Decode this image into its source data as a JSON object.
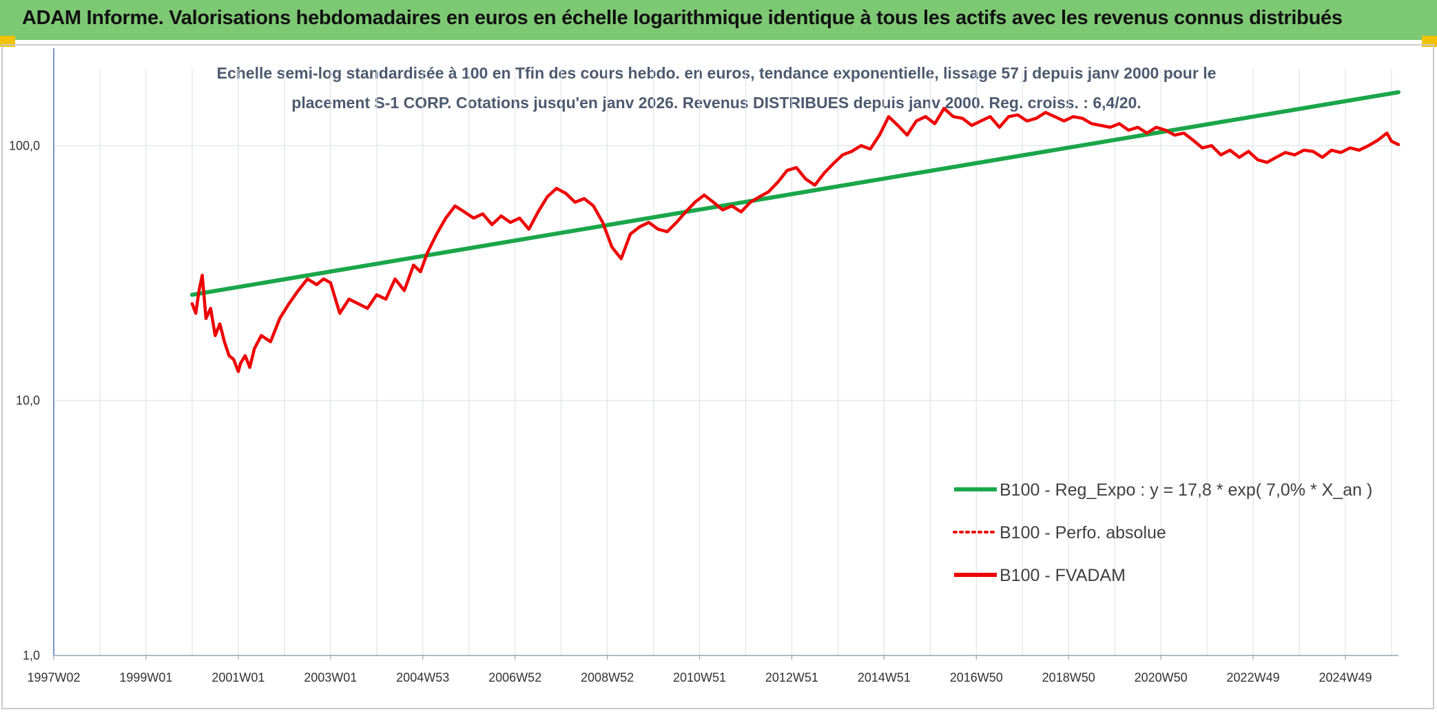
{
  "header": {
    "title": "ADAM Informe. Valorisations hebdomadaires en euros en échelle logarithmique identique à tous les actifs avec les revenus connus distribués"
  },
  "colors": {
    "banner": "#7dc873",
    "regression": "#1aa64a",
    "fvadam": "#ee0000",
    "perfo": "#ee0000",
    "corner": "#f2c200"
  },
  "chart_data": {
    "type": "line",
    "title_line1": "Echelle semi-log standardisée à 100 en Tfin des cours hebdo. en euros, tendance exponentielle, lissage 57 j depuis janv 2000 pour le",
    "title_line2": "placement S-1 CORP. Cotations jusqu'en janv 2026. Revenus DISTRIBUES depuis janv 2000. Reg. croiss. : 6,4/20.",
    "y_scale": "log",
    "ylim": [
      1,
      200
    ],
    "xlim": [
      1997.0,
      2026.15
    ],
    "y_ticks": [
      {
        "value": 1,
        "label": "1,0"
      },
      {
        "value": 10,
        "label": "10,0"
      },
      {
        "value": 100,
        "label": "100,0"
      }
    ],
    "x_ticks": [
      {
        "value": 1997.0,
        "label": "1997W02"
      },
      {
        "value": 1999.0,
        "label": "1999W01"
      },
      {
        "value": 2001.0,
        "label": "2001W01"
      },
      {
        "value": 2003.0,
        "label": "2003W01"
      },
      {
        "value": 2005.0,
        "label": "2004W53"
      },
      {
        "value": 2007.0,
        "label": "2006W52"
      },
      {
        "value": 2009.0,
        "label": "2008W52"
      },
      {
        "value": 2011.0,
        "label": "2010W51"
      },
      {
        "value": 2013.0,
        "label": "2012W51"
      },
      {
        "value": 2015.0,
        "label": "2014W51"
      },
      {
        "value": 2017.0,
        "label": "2016W50"
      },
      {
        "value": 2019.0,
        "label": "2018W50"
      },
      {
        "value": 2021.0,
        "label": "2020W50"
      },
      {
        "value": 2023.0,
        "label": "2022W49"
      },
      {
        "value": 2025.0,
        "label": "2024W49"
      }
    ],
    "grid": true,
    "legend_position": "bottom-right",
    "series": [
      {
        "name": "B100 - Reg_Expo : y = 17,8 * exp( 7,0% *  X_an )",
        "style": "solid-thick",
        "color": "#1aa64a",
        "x": [
          2000.0,
          2026.15
        ],
        "y": [
          26.0,
          162.0
        ]
      },
      {
        "name": "B100 - Perfo. absolue",
        "style": "dotted",
        "color": "#ee0000",
        "x": [],
        "y": []
      },
      {
        "name": "B100 - FVADAM",
        "style": "solid",
        "color": "#ee0000",
        "x": [
          2000.0,
          2000.08,
          2000.15,
          2000.22,
          2000.3,
          2000.4,
          2000.5,
          2000.6,
          2000.7,
          2000.8,
          2000.9,
          2001.0,
          2001.05,
          2001.15,
          2001.25,
          2001.35,
          2001.5,
          2001.7,
          2001.9,
          2002.1,
          2002.3,
          2002.5,
          2002.7,
          2002.85,
          2003.0,
          2003.2,
          2003.4,
          2003.6,
          2003.8,
          2004.0,
          2004.2,
          2004.4,
          2004.6,
          2004.8,
          2004.95,
          2005.1,
          2005.3,
          2005.5,
          2005.7,
          2005.9,
          2006.1,
          2006.3,
          2006.5,
          2006.7,
          2006.9,
          2007.1,
          2007.3,
          2007.5,
          2007.7,
          2007.9,
          2008.1,
          2008.3,
          2008.5,
          2008.7,
          2008.9,
          2009.1,
          2009.3,
          2009.5,
          2009.7,
          2009.9,
          2010.1,
          2010.3,
          2010.5,
          2010.7,
          2010.9,
          2011.1,
          2011.3,
          2011.5,
          2011.7,
          2011.9,
          2012.1,
          2012.3,
          2012.5,
          2012.7,
          2012.9,
          2013.1,
          2013.3,
          2013.5,
          2013.7,
          2013.9,
          2014.1,
          2014.3,
          2014.5,
          2014.7,
          2014.9,
          2015.1,
          2015.3,
          2015.5,
          2015.7,
          2015.9,
          2016.1,
          2016.3,
          2016.5,
          2016.7,
          2016.9,
          2017.1,
          2017.3,
          2017.5,
          2017.7,
          2017.9,
          2018.1,
          2018.3,
          2018.5,
          2018.7,
          2018.9,
          2019.1,
          2019.3,
          2019.5,
          2019.7,
          2019.9,
          2020.1,
          2020.3,
          2020.5,
          2020.7,
          2020.9,
          2021.1,
          2021.3,
          2021.5,
          2021.7,
          2021.9,
          2022.1,
          2022.3,
          2022.5,
          2022.7,
          2022.9,
          2023.1,
          2023.3,
          2023.5,
          2023.7,
          2023.9,
          2024.1,
          2024.3,
          2024.5,
          2024.7,
          2024.9,
          2025.1,
          2025.3,
          2025.5,
          2025.7,
          2025.9,
          2026.0,
          2026.15
        ],
        "y": [
          24.0,
          22.0,
          27.0,
          31.0,
          21.0,
          23.0,
          18.0,
          20.0,
          17.0,
          15.0,
          14.5,
          13.0,
          14.0,
          15.0,
          13.5,
          16.0,
          18.0,
          17.0,
          21.0,
          24.0,
          27.0,
          30.0,
          28.5,
          30.0,
          29.0,
          22.0,
          25.0,
          24.0,
          23.0,
          26.0,
          25.0,
          30.0,
          27.0,
          34.0,
          32.0,
          38.0,
          45.0,
          52.0,
          58.0,
          55.0,
          52.0,
          54.0,
          49.0,
          53.0,
          50.0,
          52.0,
          47.0,
          55.0,
          63.0,
          68.0,
          65.0,
          60.0,
          62.0,
          58.0,
          50.0,
          40.0,
          36.0,
          45.0,
          48.0,
          50.0,
          47.0,
          46.0,
          50.0,
          55.0,
          60.0,
          64.0,
          60.0,
          56.0,
          58.0,
          55.0,
          60.0,
          63.0,
          66.0,
          72.0,
          80.0,
          82.0,
          74.0,
          70.0,
          78.0,
          85.0,
          92.0,
          95.0,
          100.0,
          97.0,
          110.0,
          130.0,
          120.0,
          110.0,
          125.0,
          130.0,
          122.0,
          140.0,
          130.0,
          128.0,
          120.0,
          125.0,
          130.0,
          118.0,
          130.0,
          132.0,
          125.0,
          128.0,
          135.0,
          130.0,
          125.0,
          130.0,
          128.0,
          122.0,
          120.0,
          118.0,
          122.0,
          115.0,
          118.0,
          112.0,
          118.0,
          115.0,
          110.0,
          112.0,
          105.0,
          98.0,
          100.0,
          92.0,
          96.0,
          90.0,
          95.0,
          88.0,
          86.0,
          90.0,
          94.0,
          92.0,
          96.0,
          95.0,
          90.0,
          96.0,
          94.0,
          98.0,
          96.0,
          100.0,
          105.0,
          112.0,
          104.0,
          101.0
        ]
      }
    ]
  }
}
